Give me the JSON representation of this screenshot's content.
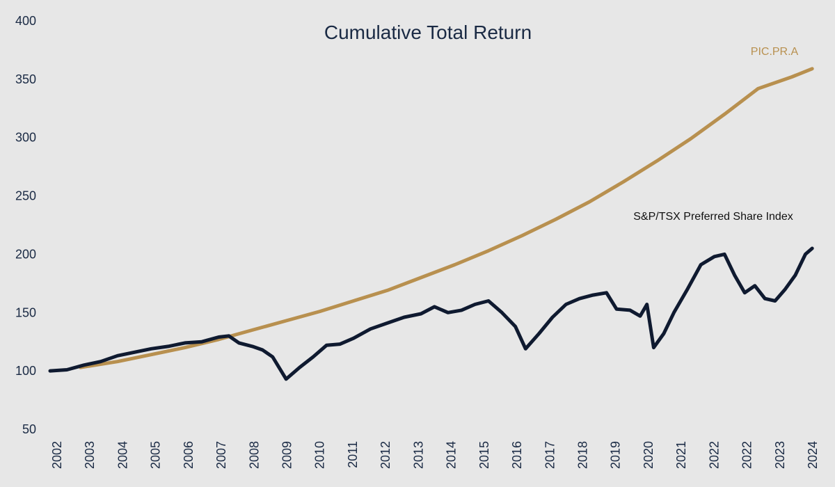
{
  "chart_data": {
    "type": "line",
    "title": "Cumulative Total Return",
    "xlabel": "",
    "ylabel": "",
    "ylim": [
      50,
      400
    ],
    "yticks": [
      50,
      100,
      150,
      200,
      250,
      300,
      350,
      400
    ],
    "xticks": [
      "2002",
      "2003",
      "2004",
      "2005",
      "2006",
      "2007",
      "2008",
      "2009",
      "2010",
      "2011",
      "2012",
      "2013",
      "2014",
      "2015",
      "2016",
      "2017",
      "2018",
      "2019",
      "2020",
      "2021",
      "2022",
      "2022",
      "2023",
      "2024"
    ],
    "grid": false,
    "legend": "inline-labels",
    "series": [
      {
        "name": "PIC.PR.A",
        "color": "#b8904f",
        "x": [
          2002.9,
          2004,
          2005,
          2006,
          2007,
          2008,
          2009,
          2010,
          2011,
          2012,
          2013,
          2014,
          2015,
          2016,
          2017,
          2018,
          2019,
          2020,
          2021,
          2022,
          2023,
          2024,
          2024.6
        ],
        "values": [
          103,
          108,
          114,
          120,
          127,
          135,
          143,
          151,
          160,
          169,
          180,
          191,
          203,
          216,
          230,
          245,
          262,
          280,
          299,
          320,
          342,
          352,
          359
        ]
      },
      {
        "name": "S&P/TSX Preferred Share Index",
        "color": "#0f1a30",
        "x": [
          2002,
          2002.5,
          2003,
          2003.5,
          2004,
          2004.5,
          2005,
          2005.5,
          2006,
          2006.5,
          2007,
          2007.3,
          2007.6,
          2008,
          2008.3,
          2008.6,
          2009,
          2009.4,
          2009.8,
          2010.2,
          2010.6,
          2011,
          2011.5,
          2012,
          2012.5,
          2013,
          2013.4,
          2013.8,
          2014.2,
          2014.6,
          2015,
          2015.4,
          2015.8,
          2016.1,
          2016.5,
          2016.9,
          2017.3,
          2017.7,
          2018.1,
          2018.5,
          2018.8,
          2019.2,
          2019.5,
          2019.7,
          2019.9,
          2020.2,
          2020.5,
          2020.9,
          2021.3,
          2021.7,
          2022,
          2022.3,
          2022.6,
          2022.9,
          2023.2,
          2023.5,
          2023.8,
          2024.1,
          2024.4,
          2024.6
        ],
        "values": [
          100,
          101,
          105,
          108,
          113,
          116,
          119,
          121,
          124,
          125,
          129,
          130,
          124,
          121,
          118,
          112,
          93,
          103,
          112,
          122,
          123,
          128,
          136,
          141,
          146,
          149,
          155,
          150,
          152,
          157,
          160,
          150,
          138,
          119,
          132,
          146,
          157,
          162,
          165,
          167,
          153,
          152,
          147,
          157,
          120,
          132,
          150,
          170,
          191,
          198,
          200,
          182,
          167,
          173,
          162,
          160,
          170,
          182,
          200,
          205
        ]
      }
    ]
  }
}
